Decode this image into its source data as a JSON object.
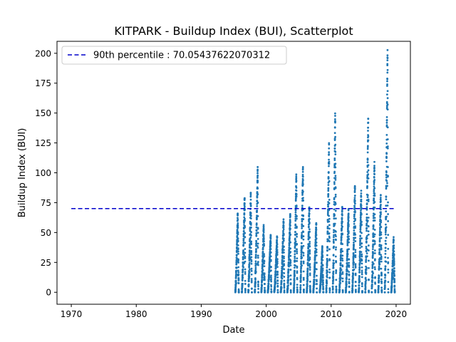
{
  "chart_data": {
    "type": "scatter",
    "title": "KITPARK - Buildup Index (BUI), Scatterplot",
    "xlabel": "Date",
    "ylabel": "Buildup Index (BUI)",
    "xlim": [
      1967.8,
      2022.2
    ],
    "ylim": [
      -10,
      210
    ],
    "xticks": [
      1970,
      1980,
      1990,
      2000,
      2010,
      2020
    ],
    "yticks": [
      0,
      25,
      50,
      75,
      100,
      125,
      150,
      175,
      200
    ],
    "grid": false,
    "legend_position": "top-left",
    "reference_line": {
      "label": "90th percentile : 70.05437622070312",
      "value": 70.05437622070312,
      "x_range": [
        1970,
        2020
      ],
      "color": "#0000cc",
      "style": "dashed"
    },
    "series": [
      {
        "color": "#1f77b4",
        "season_peaks": [
          {
            "year": 1995,
            "peak": 66
          },
          {
            "year": 1996,
            "peak": 80
          },
          {
            "year": 1997,
            "peak": 82
          },
          {
            "year": 1998,
            "peak": 103
          },
          {
            "year": 1999,
            "peak": 56
          },
          {
            "year": 2000,
            "peak": 48
          },
          {
            "year": 2001,
            "peak": 47
          },
          {
            "year": 2002,
            "peak": 61
          },
          {
            "year": 2003,
            "peak": 65
          },
          {
            "year": 2004,
            "peak": 98
          },
          {
            "year": 2005,
            "peak": 105
          },
          {
            "year": 2006,
            "peak": 72
          },
          {
            "year": 2007,
            "peak": 58
          },
          {
            "year": 2008,
            "peak": 38
          },
          {
            "year": 2009,
            "peak": 124
          },
          {
            "year": 2010,
            "peak": 148
          },
          {
            "year": 2011,
            "peak": 70
          },
          {
            "year": 2012,
            "peak": 68
          },
          {
            "year": 2013,
            "peak": 89
          },
          {
            "year": 2014,
            "peak": 84
          },
          {
            "year": 2015,
            "peak": 146
          },
          {
            "year": 2016,
            "peak": 108
          },
          {
            "year": 2017,
            "peak": 81
          },
          {
            "year": 2018,
            "peak": 201
          },
          {
            "year": 2019,
            "peak": 46
          }
        ]
      }
    ]
  }
}
